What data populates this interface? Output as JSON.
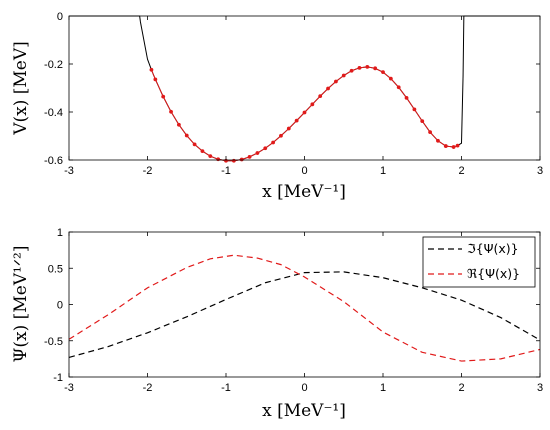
{
  "chart_data": [
    {
      "type": "line",
      "xlabel": "x [MeV⁻¹]",
      "ylabel": "V(x) [MeV]",
      "xlim": [
        -3,
        3
      ],
      "ylim": [
        -0.6,
        0
      ],
      "xticks": [
        "-3",
        "-2",
        "-1",
        "0",
        "1",
        "2",
        "3"
      ],
      "yticks": [
        "0",
        "-0.2",
        "-0.4",
        "-0.6"
      ],
      "grid": false,
      "series": [
        {
          "style": "solid black line",
          "color": "#000000",
          "x": [
            -3.0,
            -2.1,
            -2.09,
            -2.0,
            -1.95,
            -1.9,
            -1.8,
            -1.7,
            -1.6,
            -1.5,
            -1.4,
            -1.3,
            -1.2,
            -1.1,
            -1.0,
            -0.9,
            -0.8,
            -0.7,
            -0.6,
            -0.5,
            -0.4,
            -0.3,
            -0.2,
            -0.1,
            0.0,
            0.1,
            0.2,
            0.3,
            0.4,
            0.5,
            0.6,
            0.7,
            0.8,
            0.9,
            1.0,
            1.1,
            1.2,
            1.3,
            1.4,
            1.5,
            1.6,
            1.7,
            1.8,
            1.9,
            1.95,
            2.0,
            2.02,
            2.03,
            3.0
          ],
          "values": [
            0,
            0,
            -0.025,
            -0.18,
            -0.224,
            -0.264,
            -0.336,
            -0.399,
            -0.453,
            -0.498,
            -0.535,
            -0.563,
            -0.584,
            -0.597,
            -0.603,
            -0.603,
            -0.598,
            -0.587,
            -0.571,
            -0.551,
            -0.527,
            -0.499,
            -0.469,
            -0.436,
            -0.402,
            -0.368,
            -0.334,
            -0.302,
            -0.273,
            -0.248,
            -0.228,
            -0.216,
            -0.212,
            -0.218,
            -0.234,
            -0.261,
            -0.297,
            -0.341,
            -0.389,
            -0.438,
            -0.484,
            -0.52,
            -0.542,
            -0.546,
            -0.54,
            -0.53,
            -0.25,
            0,
            0
          ]
        },
        {
          "style": "red dotted markers",
          "color": "#e11a1a",
          "x": [
            -1.95,
            -1.9,
            -1.8,
            -1.7,
            -1.6,
            -1.5,
            -1.4,
            -1.3,
            -1.2,
            -1.1,
            -1.0,
            -0.9,
            -0.8,
            -0.7,
            -0.6,
            -0.5,
            -0.4,
            -0.3,
            -0.2,
            -0.1,
            0.0,
            0.1,
            0.2,
            0.3,
            0.4,
            0.5,
            0.6,
            0.7,
            0.8,
            0.9,
            1.0,
            1.1,
            1.2,
            1.3,
            1.4,
            1.5,
            1.6,
            1.7,
            1.8,
            1.9,
            1.95
          ],
          "values": [
            -0.224,
            -0.264,
            -0.336,
            -0.399,
            -0.453,
            -0.498,
            -0.535,
            -0.563,
            -0.584,
            -0.597,
            -0.603,
            -0.603,
            -0.598,
            -0.587,
            -0.571,
            -0.551,
            -0.527,
            -0.499,
            -0.469,
            -0.436,
            -0.402,
            -0.368,
            -0.334,
            -0.302,
            -0.273,
            -0.248,
            -0.228,
            -0.216,
            -0.212,
            -0.218,
            -0.234,
            -0.261,
            -0.297,
            -0.341,
            -0.389,
            -0.438,
            -0.484,
            -0.52,
            -0.542,
            -0.546,
            -0.54
          ]
        }
      ]
    },
    {
      "type": "line",
      "xlabel": "x [MeV⁻¹]",
      "ylabel": "Ψ(x) [MeV¹ᐟ²]",
      "xlim": [
        -3,
        3
      ],
      "ylim": [
        -1,
        1
      ],
      "xticks": [
        "-3",
        "-2",
        "-1",
        "0",
        "1",
        "2",
        "3"
      ],
      "yticks": [
        "1",
        "0.5",
        "0",
        "-0.5",
        "-1"
      ],
      "grid": false,
      "legend_position": "top-right",
      "series": [
        {
          "name": "ℑ{Ψ(x)}",
          "style": "dashed",
          "color": "#000000",
          "x": [
            -3.0,
            -2.5,
            -2.0,
            -1.5,
            -1.0,
            -0.5,
            0.0,
            0.5,
            1.0,
            1.5,
            2.0,
            2.5,
            3.0
          ],
          "values": [
            -0.73,
            -0.58,
            -0.39,
            -0.17,
            0.07,
            0.3,
            0.44,
            0.45,
            0.37,
            0.23,
            0.06,
            -0.18,
            -0.49
          ]
        },
        {
          "name": "ℜ{Ψ(x)}",
          "style": "dashed",
          "color": "#e11a1a",
          "x": [
            -3.0,
            -2.5,
            -2.0,
            -1.5,
            -1.2,
            -0.9,
            -0.6,
            -0.3,
            0.0,
            0.5,
            1.0,
            1.5,
            2.0,
            2.5,
            3.0
          ],
          "values": [
            -0.48,
            -0.14,
            0.23,
            0.51,
            0.63,
            0.68,
            0.64,
            0.55,
            0.38,
            0.04,
            -0.38,
            -0.66,
            -0.78,
            -0.75,
            -0.62
          ]
        }
      ]
    }
  ]
}
